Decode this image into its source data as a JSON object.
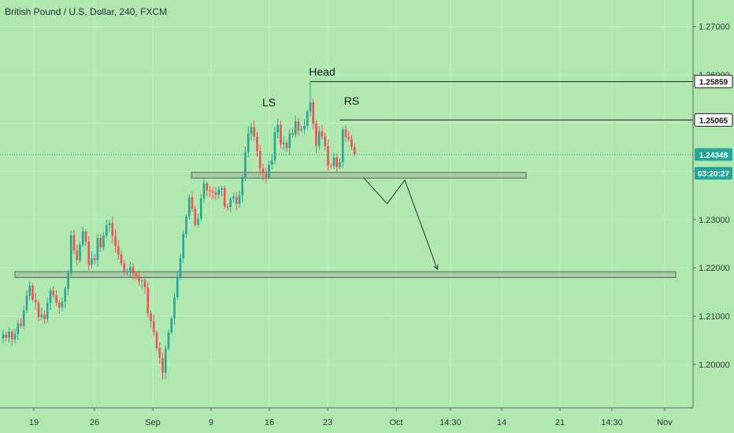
{
  "header": {
    "title": "British Pound / U.S. Dollar, 240, FXCM"
  },
  "chart_data": {
    "type": "candlestick",
    "symbol": "British Pound / U.S. Dollar",
    "interval": "240",
    "source": "FXCM",
    "ylim": [
      1.191,
      1.2755
    ],
    "y_ticks": [
      "1.27000",
      "1.26000",
      "1.25000",
      "1.24000",
      "1.23000",
      "1.22000",
      "1.21000",
      "1.20000"
    ],
    "y_tick_values": [
      1.27,
      1.26,
      1.25,
      1.24,
      1.23,
      1.22,
      1.21,
      1.2
    ],
    "x_ticks": [
      "19",
      "26",
      "Sep",
      "9",
      "16",
      "23",
      "Oct",
      "14:30",
      "14",
      "21",
      "14:30",
      "Nov"
    ],
    "price_tags": [
      {
        "label": "1.25859",
        "value": 1.25859,
        "style": "light"
      },
      {
        "label": "1.25065",
        "value": 1.25065,
        "style": "light"
      },
      {
        "label": "1.24348",
        "value": 1.24348,
        "style": "accent"
      },
      {
        "label": "03:20:27",
        "value": 1.2396,
        "style": "accent"
      }
    ],
    "last_price": 1.24348,
    "annotations": [
      "LS",
      "Head",
      "RS"
    ],
    "zones": [
      {
        "low": 1.2386,
        "high": 1.2398
      },
      {
        "low": 1.218,
        "high": 1.2192
      }
    ],
    "projection_path": [
      {
        "bar": 122,
        "price": 1.2387
      },
      {
        "bar": 130,
        "price": 1.2333
      },
      {
        "bar": 136,
        "price": 1.2382
      },
      {
        "bar": 147,
        "price": 1.2197
      }
    ],
    "close_series": [
      1.2062,
      1.2055,
      1.2068,
      1.2052,
      1.2063,
      1.2085,
      1.208,
      1.2112,
      1.2142,
      1.2163,
      1.2134,
      1.2128,
      1.2098,
      1.2103,
      1.2094,
      1.2127,
      1.2153,
      1.2143,
      1.2128,
      1.2118,
      1.213,
      1.2157,
      1.2189,
      1.2268,
      1.2236,
      1.2216,
      1.2248,
      1.2276,
      1.2254,
      1.2206,
      1.222,
      1.2216,
      1.2262,
      1.2242,
      1.2267,
      1.2288,
      1.2293,
      1.2266,
      1.2245,
      1.2228,
      1.2209,
      1.2192,
      1.2192,
      1.2202,
      1.2189,
      1.2183,
      1.2172,
      1.2174,
      1.216,
      1.2106,
      1.2089,
      1.2066,
      1.2034,
      1.2013,
      1.1983,
      1.2033,
      1.2066,
      1.2095,
      1.2139,
      1.2179,
      1.222,
      1.227,
      1.2307,
      1.2346,
      1.2322,
      1.2289,
      1.2302,
      1.2344,
      1.2375,
      1.2361,
      1.2359,
      1.2356,
      1.2351,
      1.2362,
      1.2365,
      1.2327,
      1.2326,
      1.2343,
      1.2347,
      1.2333,
      1.235,
      1.2388,
      1.244,
      1.2478,
      1.2492,
      1.2472,
      1.2442,
      1.2406,
      1.2396,
      1.2388,
      1.2414,
      1.2423,
      1.2481,
      1.2496,
      1.2456,
      1.2459,
      1.2448,
      1.2479,
      1.2476,
      1.2504,
      1.2484,
      1.2487,
      1.2494,
      1.2524,
      1.2543,
      1.2499,
      1.2453,
      1.2483,
      1.2472,
      1.2452,
      1.2412,
      1.2411,
      1.2429,
      1.2409,
      1.2419,
      1.2487,
      1.2471,
      1.2467,
      1.2451,
      1.2435
    ]
  }
}
